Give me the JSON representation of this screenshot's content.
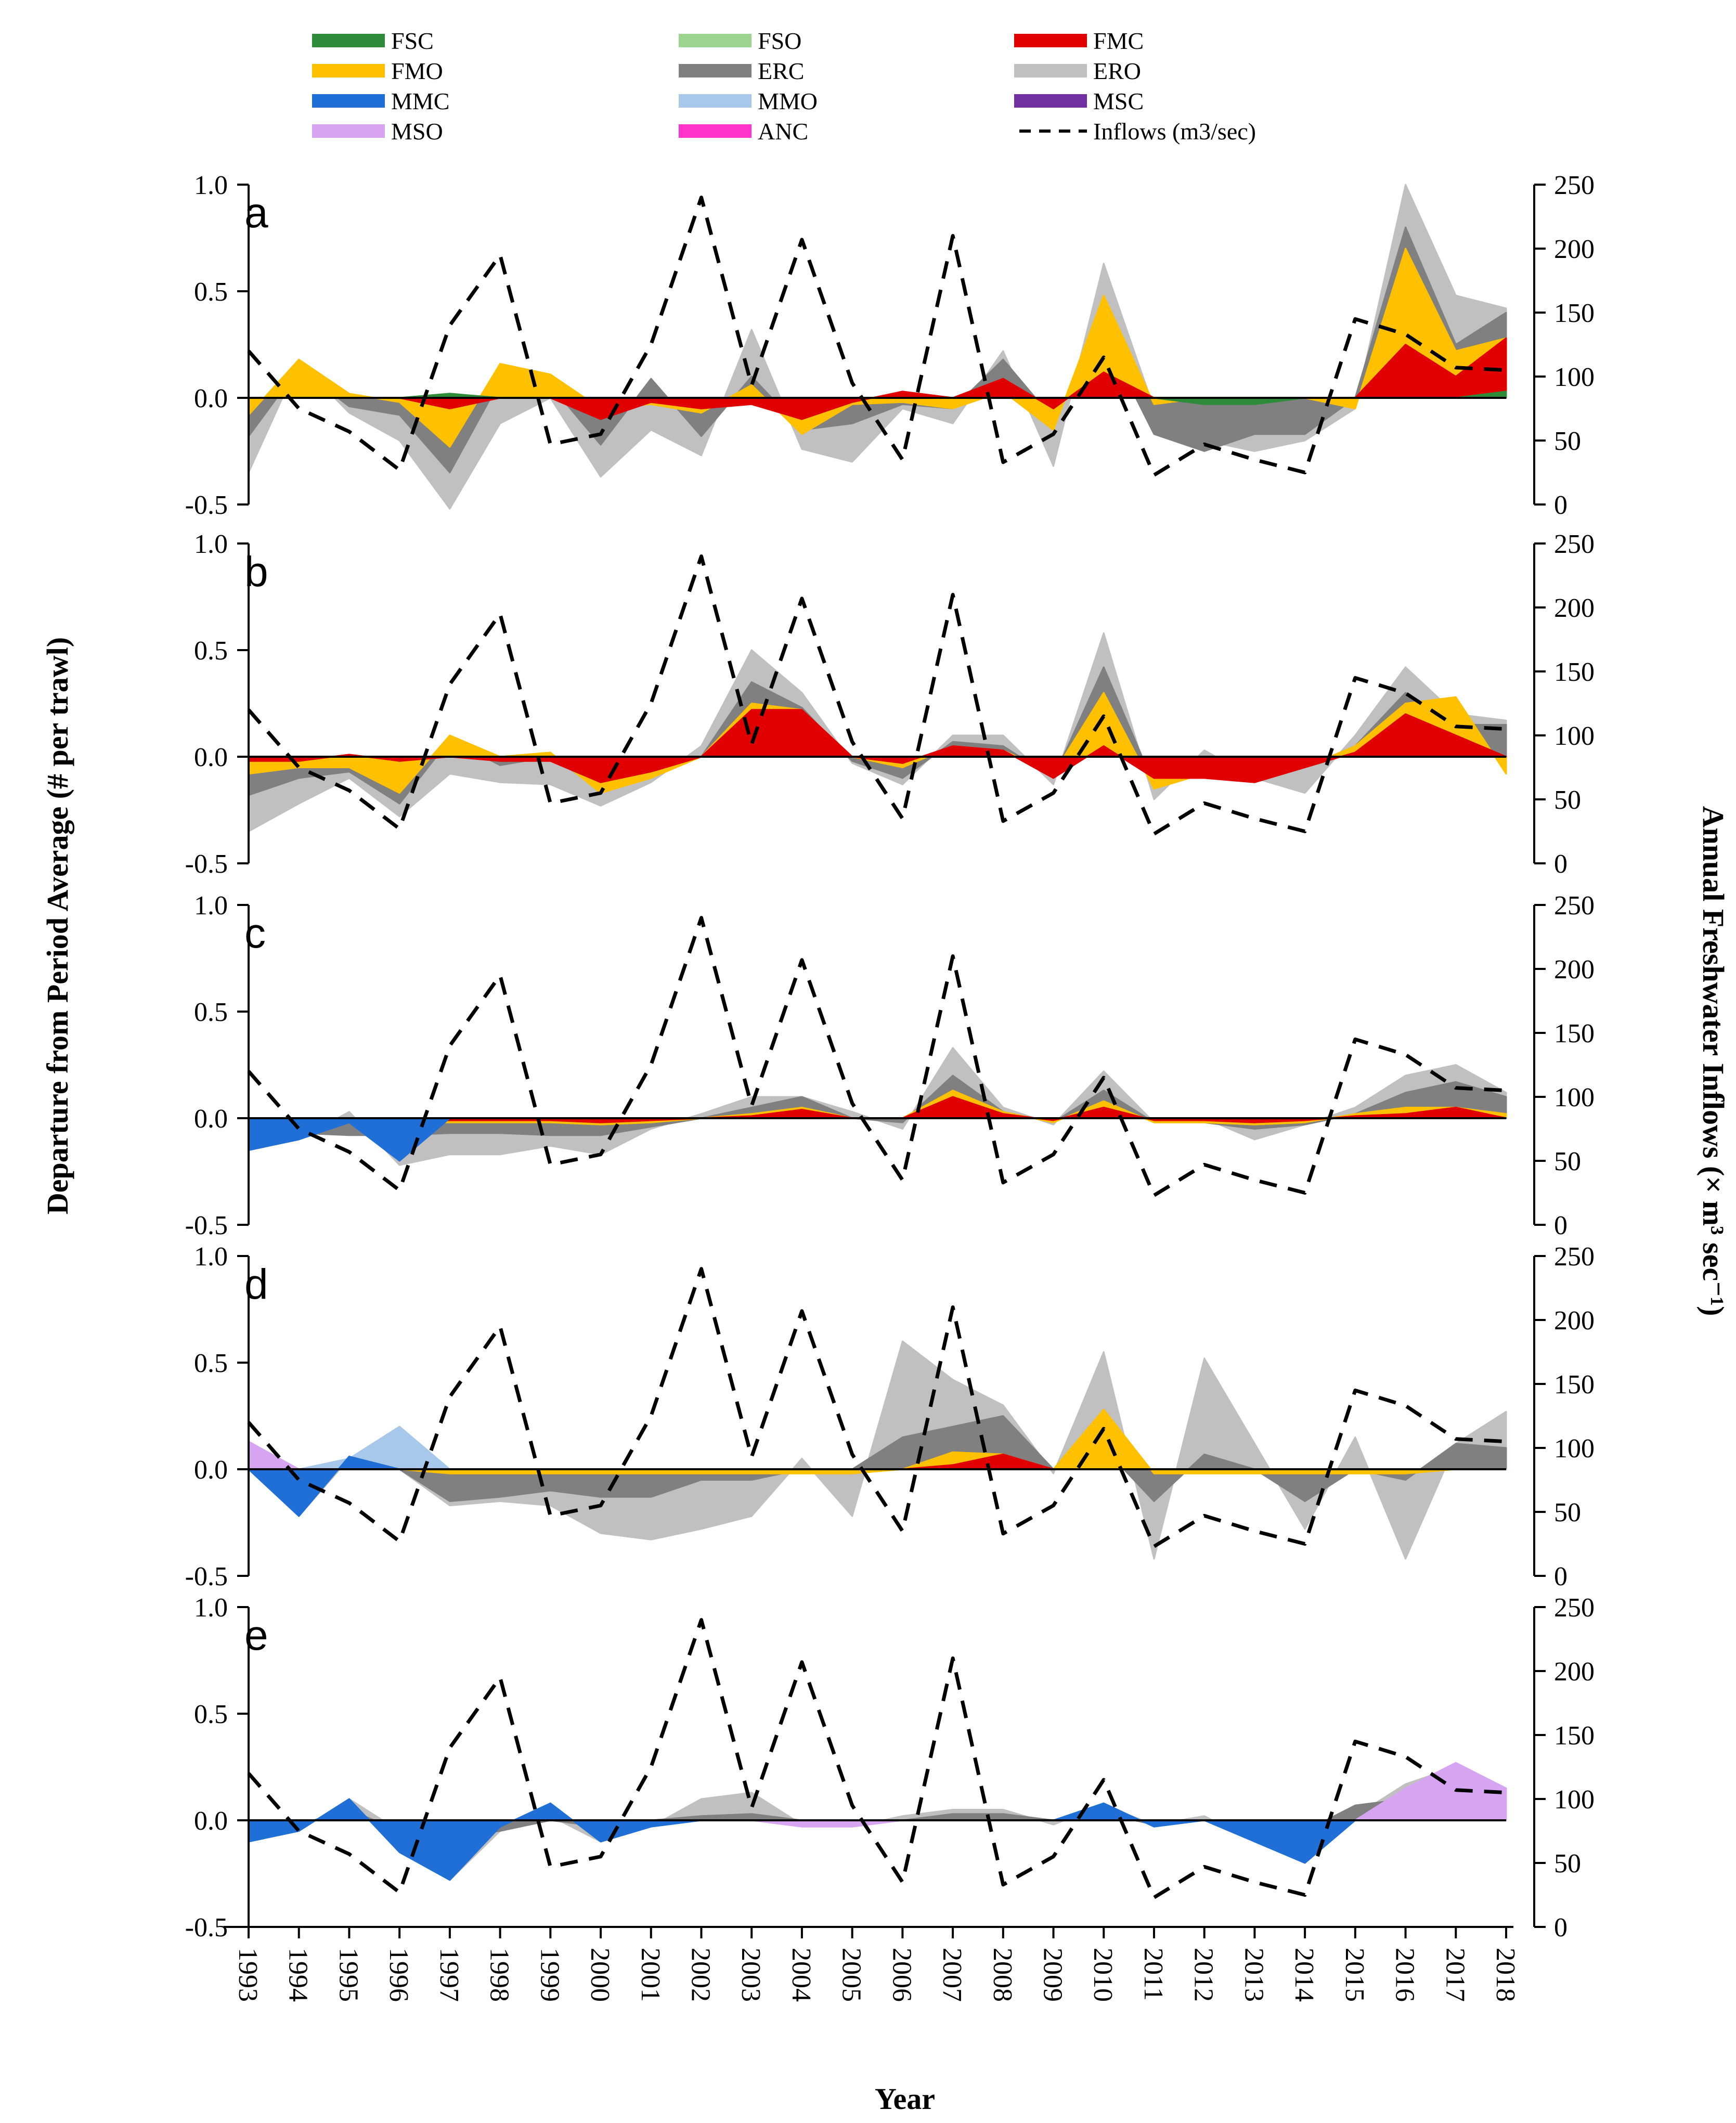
{
  "chart_data": {
    "type": "area",
    "xlabel": "Year",
    "ylabel_left": "Departure from Period Average (# per trawl)",
    "ylabel_right": "Annual Freshwater Inflows (× m³ sec⁻¹)",
    "years": [
      1993,
      1994,
      1995,
      1996,
      1997,
      1998,
      1999,
      2000,
      2001,
      2002,
      2003,
      2004,
      2005,
      2006,
      2007,
      2008,
      2009,
      2010,
      2011,
      2012,
      2013,
      2014,
      2015,
      2016,
      2017,
      2018
    ],
    "ylim_left": [
      -0.5,
      1.0
    ],
    "ylim_right": [
      0,
      250
    ],
    "yticks_left": [
      "1.0",
      "0.5",
      "0.0",
      "-0.5"
    ],
    "yticks_right": [
      "250",
      "200",
      "150",
      "100",
      "50",
      "0"
    ],
    "legend": [
      {
        "code": "FSC",
        "color": "#2e8b3a",
        "style": "solid"
      },
      {
        "code": "FSO",
        "color": "#9ad48f",
        "style": "solid"
      },
      {
        "code": "FMC",
        "color": "#e00000",
        "style": "solid"
      },
      {
        "code": "FMO",
        "color": "#ffc000",
        "style": "solid"
      },
      {
        "code": "ERC",
        "color": "#808080",
        "style": "solid"
      },
      {
        "code": "ERO",
        "color": "#c0c0c0",
        "style": "solid"
      },
      {
        "code": "MMC",
        "color": "#1f6fd6",
        "style": "solid"
      },
      {
        "code": "MMO",
        "color": "#a7c8ea",
        "style": "solid"
      },
      {
        "code": "MSC",
        "color": "#7030a0",
        "style": "solid"
      },
      {
        "code": "MSO",
        "color": "#d6a4f0",
        "style": "solid"
      },
      {
        "code": "ANC",
        "color": "#ff33cc",
        "style": "solid"
      },
      {
        "code": "Inflows (m3/sec)",
        "color": "#000000",
        "style": "dashed"
      }
    ],
    "inflows": [
      120,
      75,
      57,
      27,
      140,
      195,
      47,
      55,
      125,
      240,
      93,
      207,
      95,
      35,
      210,
      33,
      55,
      115,
      23,
      47,
      35,
      25,
      145,
      133,
      107,
      105
    ],
    "panels": [
      {
        "label": "a",
        "series": [
          {
            "name": "ERO",
            "color": "#c0c0c0",
            "values": [
              -0.35,
              0.17,
              -0.07,
              -0.2,
              -0.52,
              -0.12,
              0.0,
              -0.37,
              -0.15,
              -0.27,
              0.32,
              -0.24,
              -0.3,
              -0.05,
              -0.12,
              0.22,
              -0.32,
              0.63,
              -0.05,
              -0.2,
              -0.25,
              -0.2,
              -0.05,
              1.0,
              0.48,
              0.42
            ]
          },
          {
            "name": "ERC",
            "color": "#808080",
            "values": [
              -0.18,
              0.14,
              -0.04,
              -0.08,
              -0.35,
              0.08,
              0.06,
              -0.22,
              0.09,
              -0.18,
              0.1,
              -0.15,
              -0.12,
              -0.03,
              -0.05,
              0.18,
              -0.1,
              0.3,
              -0.17,
              -0.25,
              -0.17,
              -0.17,
              0.0,
              0.8,
              0.25,
              0.4
            ]
          },
          {
            "name": "FMO",
            "color": "#ffc000",
            "values": [
              -0.08,
              0.18,
              0.02,
              -0.02,
              -0.23,
              0.16,
              0.11,
              -0.05,
              -0.03,
              -0.07,
              0.06,
              -0.17,
              -0.03,
              -0.02,
              -0.05,
              0.03,
              -0.15,
              0.48,
              -0.03,
              0.0,
              0.0,
              0.0,
              -0.05,
              0.7,
              0.22,
              0.28
            ]
          },
          {
            "name": "FMC",
            "color": "#e00000",
            "values": [
              0.0,
              0.0,
              0.0,
              0.0,
              -0.05,
              0.0,
              0.0,
              -0.1,
              -0.02,
              -0.05,
              -0.03,
              -0.1,
              -0.02,
              0.03,
              0.0,
              0.09,
              -0.05,
              0.12,
              0.0,
              0.0,
              0.0,
              0.0,
              0.0,
              0.25,
              0.1,
              0.28
            ]
          },
          {
            "name": "FSC",
            "color": "#2e8b3a",
            "values": [
              0.0,
              0.0,
              0.0,
              0.0,
              0.02,
              0.0,
              0.0,
              0.0,
              0.0,
              0.0,
              0.0,
              0.0,
              0.0,
              0.0,
              0.0,
              0.0,
              0.0,
              0.0,
              0.0,
              -0.03,
              -0.03,
              0.0,
              0.0,
              0.0,
              0.0,
              0.03
            ]
          }
        ]
      },
      {
        "label": "b",
        "series": [
          {
            "name": "ERO",
            "color": "#c0c0c0",
            "values": [
              -0.35,
              -0.22,
              -0.1,
              -0.28,
              -0.08,
              -0.12,
              -0.13,
              -0.23,
              -0.12,
              0.05,
              0.5,
              0.3,
              -0.03,
              -0.13,
              0.1,
              0.1,
              -0.13,
              0.58,
              -0.2,
              0.03,
              -0.1,
              -0.17,
              0.1,
              0.42,
              0.2,
              0.17
            ]
          },
          {
            "name": "ERC",
            "color": "#808080",
            "values": [
              -0.18,
              -0.1,
              -0.07,
              -0.22,
              0.08,
              -0.04,
              0.0,
              -0.15,
              -0.08,
              0.0,
              0.35,
              0.23,
              -0.02,
              -0.1,
              0.07,
              0.05,
              -0.1,
              0.42,
              -0.13,
              -0.05,
              -0.08,
              -0.05,
              0.05,
              0.3,
              0.15,
              0.15
            ]
          },
          {
            "name": "FMO",
            "color": "#ffc000",
            "values": [
              -0.08,
              -0.05,
              -0.05,
              -0.17,
              0.1,
              0.0,
              0.02,
              -0.17,
              -0.1,
              0.0,
              0.25,
              0.22,
              0.0,
              -0.05,
              0.05,
              0.03,
              -0.08,
              0.3,
              -0.15,
              -0.08,
              -0.1,
              -0.05,
              0.05,
              0.25,
              0.28,
              -0.08
            ]
          },
          {
            "name": "FMC",
            "color": "#e00000",
            "values": [
              -0.02,
              -0.02,
              0.01,
              -0.02,
              0.0,
              -0.02,
              -0.02,
              -0.12,
              -0.07,
              0.0,
              0.22,
              0.22,
              0.0,
              -0.03,
              0.05,
              0.03,
              -0.1,
              0.05,
              -0.1,
              -0.1,
              -0.12,
              -0.05,
              0.02,
              0.2,
              0.1,
              0.0
            ]
          }
        ]
      },
      {
        "label": "c",
        "series": [
          {
            "name": "ERO",
            "color": "#c0c0c0",
            "values": [
              -0.15,
              -0.1,
              0.03,
              -0.22,
              -0.17,
              -0.17,
              -0.13,
              -0.17,
              -0.05,
              0.02,
              0.1,
              0.1,
              0.03,
              -0.05,
              0.33,
              0.05,
              -0.03,
              0.22,
              -0.02,
              0.0,
              -0.1,
              -0.03,
              0.05,
              0.2,
              0.25,
              0.12
            ]
          },
          {
            "name": "ERC",
            "color": "#808080",
            "values": [
              -0.05,
              -0.07,
              -0.08,
              -0.08,
              -0.07,
              -0.07,
              -0.08,
              -0.08,
              -0.04,
              0.0,
              0.05,
              0.1,
              0.0,
              -0.02,
              0.2,
              0.03,
              -0.02,
              0.13,
              -0.02,
              -0.02,
              -0.05,
              -0.03,
              0.02,
              0.12,
              0.17,
              0.1
            ]
          },
          {
            "name": "FMO",
            "color": "#ffc000",
            "values": [
              -0.02,
              -0.02,
              -0.02,
              -0.02,
              -0.02,
              -0.02,
              -0.02,
              -0.03,
              -0.02,
              0.0,
              0.02,
              0.05,
              0.0,
              0.0,
              0.13,
              0.03,
              -0.02,
              0.08,
              -0.02,
              -0.02,
              -0.03,
              -0.02,
              0.02,
              0.05,
              0.05,
              0.02
            ]
          },
          {
            "name": "FMC",
            "color": "#e00000",
            "values": [
              -0.01,
              -0.01,
              -0.01,
              -0.01,
              -0.01,
              -0.01,
              -0.01,
              -0.02,
              -0.01,
              0.0,
              0.01,
              0.04,
              0.0,
              0.0,
              0.1,
              0.02,
              -0.01,
              0.05,
              -0.01,
              -0.01,
              -0.02,
              -0.01,
              0.01,
              0.02,
              0.05,
              0.0
            ]
          },
          {
            "name": "MMC",
            "color": "#1f6fd6",
            "values": [
              -0.15,
              -0.1,
              -0.02,
              -0.2,
              0.0,
              0.0,
              0.0,
              0.0,
              0.0,
              0.0,
              0.0,
              0.0,
              0.0,
              0.0,
              0.0,
              0.0,
              0.0,
              0.0,
              0.0,
              0.0,
              0.0,
              0.0,
              0.0,
              0.0,
              0.0,
              0.0
            ]
          }
        ]
      },
      {
        "label": "d",
        "series": [
          {
            "name": "MMO",
            "color": "#a7c8ea",
            "values": [
              0.0,
              0.0,
              0.05,
              0.2,
              0.0,
              0.0,
              0.0,
              0.0,
              0.0,
              0.0,
              0.0,
              0.0,
              0.0,
              0.0,
              0.0,
              0.0,
              0.0,
              0.0,
              0.0,
              0.0,
              0.0,
              0.0,
              0.0,
              0.0,
              0.0,
              0.0
            ]
          },
          {
            "name": "ERO",
            "color": "#c0c0c0",
            "values": [
              0.13,
              -0.22,
              0.05,
              0.0,
              -0.17,
              -0.15,
              -0.17,
              -0.3,
              -0.33,
              -0.28,
              -0.22,
              0.05,
              -0.22,
              0.6,
              0.42,
              0.3,
              -0.02,
              0.55,
              -0.42,
              0.52,
              0.12,
              -0.28,
              0.15,
              -0.42,
              0.12,
              0.27
            ]
          },
          {
            "name": "ERC",
            "color": "#808080",
            "values": [
              0.0,
              0.0,
              0.0,
              0.0,
              -0.15,
              -0.13,
              -0.1,
              -0.13,
              -0.13,
              -0.05,
              -0.05,
              0.0,
              0.0,
              0.15,
              0.2,
              0.25,
              0.0,
              0.1,
              -0.15,
              0.07,
              0.0,
              -0.15,
              0.0,
              -0.05,
              0.12,
              0.1
            ]
          },
          {
            "name": "FMO",
            "color": "#ffc000",
            "values": [
              0.0,
              0.0,
              0.0,
              0.0,
              -0.02,
              -0.02,
              -0.02,
              -0.02,
              -0.02,
              -0.02,
              -0.02,
              -0.02,
              -0.02,
              0.0,
              0.08,
              0.07,
              0.0,
              0.28,
              -0.02,
              -0.02,
              -0.02,
              -0.02,
              -0.02,
              -0.02,
              0.0,
              0.0
            ]
          },
          {
            "name": "FMC",
            "color": "#e00000",
            "values": [
              0.0,
              0.0,
              0.0,
              0.0,
              0.0,
              0.0,
              0.0,
              0.0,
              0.0,
              0.0,
              0.0,
              0.0,
              0.0,
              0.0,
              0.02,
              0.07,
              0.0,
              0.0,
              0.0,
              0.0,
              0.0,
              0.0,
              0.0,
              0.0,
              0.0,
              0.0
            ]
          },
          {
            "name": "MMC",
            "color": "#1f6fd6",
            "values": [
              0.0,
              -0.22,
              0.06,
              0.0,
              0.0,
              0.0,
              0.0,
              0.0,
              0.0,
              0.0,
              0.0,
              0.0,
              0.0,
              0.0,
              0.0,
              0.0,
              0.0,
              0.0,
              0.0,
              0.0,
              0.0,
              0.0,
              0.0,
              0.0,
              0.0,
              0.0
            ]
          },
          {
            "name": "MSO",
            "color": "#d6a4f0",
            "values": [
              0.13,
              0.0,
              0.0,
              0.0,
              0.0,
              0.0,
              0.0,
              0.0,
              0.0,
              0.0,
              0.0,
              0.0,
              0.0,
              0.0,
              0.0,
              0.0,
              0.0,
              0.0,
              0.0,
              0.0,
              0.0,
              0.0,
              0.0,
              0.0,
              0.0,
              0.0
            ]
          }
        ]
      },
      {
        "label": "e",
        "series": [
          {
            "name": "ERO",
            "color": "#c0c0c0",
            "values": [
              -0.1,
              -0.05,
              0.1,
              -0.05,
              -0.28,
              -0.05,
              0.02,
              -0.1,
              -0.03,
              0.1,
              0.13,
              -0.02,
              -0.03,
              0.02,
              0.05,
              0.05,
              -0.02,
              0.07,
              -0.02,
              0.02,
              -0.1,
              -0.2,
              0.02,
              0.17,
              0.25,
              0.15
            ]
          },
          {
            "name": "ERC",
            "color": "#808080",
            "values": [
              -0.05,
              -0.02,
              0.05,
              -0.05,
              -0.08,
              -0.05,
              0.0,
              -0.03,
              0.0,
              0.02,
              0.03,
              0.0,
              0.0,
              0.0,
              0.03,
              0.03,
              0.0,
              0.03,
              -0.02,
              0.0,
              -0.05,
              -0.05,
              0.07,
              0.1,
              0.17,
              0.07
            ]
          },
          {
            "name": "FMO",
            "color": "#ffc000",
            "values": [
              0.0,
              0.0,
              0.0,
              0.0,
              0.0,
              0.0,
              0.0,
              0.0,
              0.0,
              0.0,
              0.0,
              0.0,
              0.0,
              0.0,
              0.0,
              0.0,
              0.0,
              0.0,
              0.0,
              0.0,
              0.0,
              0.0,
              0.0,
              0.02,
              0.05,
              0.02
            ]
          },
          {
            "name": "MMC",
            "color": "#1f6fd6",
            "values": [
              -0.1,
              -0.05,
              0.1,
              -0.15,
              -0.28,
              -0.03,
              0.08,
              -0.1,
              -0.03,
              0.0,
              0.0,
              0.0,
              0.0,
              0.0,
              0.0,
              0.0,
              0.0,
              0.08,
              -0.03,
              0.0,
              -0.1,
              -0.2,
              0.0,
              0.0,
              0.0,
              0.15
            ]
          },
          {
            "name": "MSO",
            "color": "#d6a4f0",
            "values": [
              0.0,
              0.0,
              0.0,
              0.0,
              0.0,
              0.0,
              0.0,
              0.0,
              0.0,
              0.0,
              0.0,
              -0.03,
              -0.03,
              0.0,
              0.0,
              0.0,
              0.0,
              0.0,
              0.0,
              0.0,
              0.0,
              0.0,
              0.0,
              0.15,
              0.27,
              0.15
            ]
          }
        ]
      }
    ]
  }
}
